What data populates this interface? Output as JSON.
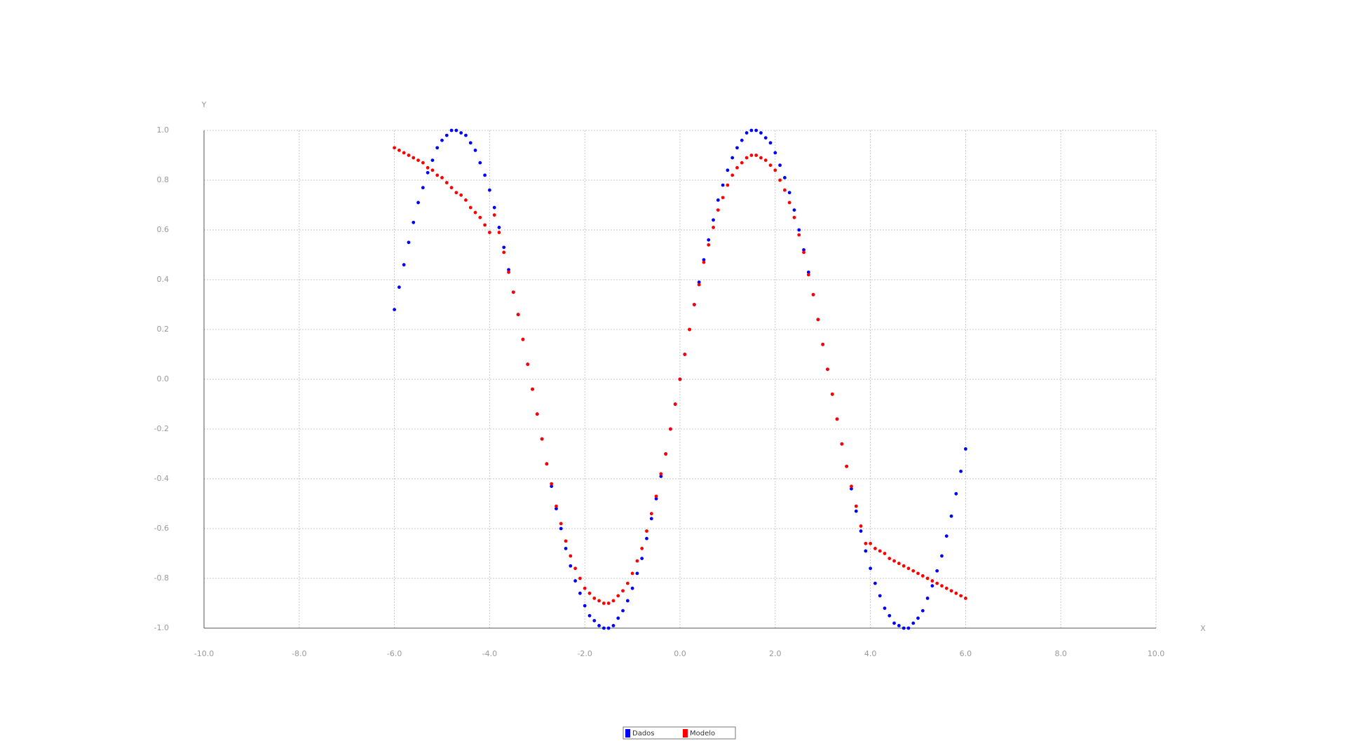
{
  "chart_data": {
    "type": "scatter",
    "x_label": "X",
    "y_label": "Y",
    "xlim": [
      -10,
      10
    ],
    "ylim": [
      -1,
      1
    ],
    "xticks": [
      {
        "value": -10,
        "label": "-10.0"
      },
      {
        "value": -8,
        "label": "-8.0"
      },
      {
        "value": -6,
        "label": "-6.0"
      },
      {
        "value": -4,
        "label": "-4.0"
      },
      {
        "value": -2,
        "label": "-2.0"
      },
      {
        "value": 0,
        "label": "0.0"
      },
      {
        "value": 2,
        "label": "2.0"
      },
      {
        "value": 4,
        "label": "4.0"
      },
      {
        "value": 6,
        "label": "6.0"
      },
      {
        "value": 8,
        "label": "8.0"
      },
      {
        "value": 10,
        "label": "10.0"
      }
    ],
    "yticks": [
      {
        "value": -1,
        "label": "-1.0"
      },
      {
        "value": -0.8,
        "label": "-0.8"
      },
      {
        "value": -0.6,
        "label": "-0.6"
      },
      {
        "value": -0.4,
        "label": "-0.4"
      },
      {
        "value": -0.2,
        "label": "-0.2"
      },
      {
        "value": 0,
        "label": "0.0"
      },
      {
        "value": 0.2,
        "label": "0.2"
      },
      {
        "value": 0.4,
        "label": "0.4"
      },
      {
        "value": 0.6,
        "label": "0.6"
      },
      {
        "value": 0.8,
        "label": "0.8"
      },
      {
        "value": 1,
        "label": "1.0"
      }
    ],
    "grid": true,
    "legend": "bottom",
    "x": [
      -6.0,
      -5.9,
      -5.8,
      -5.7,
      -5.6,
      -5.5,
      -5.4,
      -5.3,
      -5.2,
      -5.1,
      -5.0,
      -4.9,
      -4.8,
      -4.7,
      -4.6,
      -4.5,
      -4.4,
      -4.3,
      -4.2,
      -4.1,
      -4.0,
      -3.9,
      -3.8,
      -3.7,
      -3.6,
      -3.5,
      -3.4,
      -3.3,
      -3.2,
      -3.1,
      -3.0,
      -2.9,
      -2.8,
      -2.7,
      -2.6,
      -2.5,
      -2.4,
      -2.3,
      -2.2,
      -2.1,
      -2.0,
      -1.9,
      -1.8,
      -1.7,
      -1.6,
      -1.5,
      -1.4,
      -1.3,
      -1.2,
      -1.1,
      -1.0,
      -0.9,
      -0.8,
      -0.7,
      -0.6,
      -0.5,
      -0.4,
      -0.3,
      -0.2,
      -0.1,
      0.0,
      0.1,
      0.2,
      0.3,
      0.4,
      0.5,
      0.6,
      0.7,
      0.8,
      0.9,
      1.0,
      1.1,
      1.2,
      1.3,
      1.4,
      1.5,
      1.6,
      1.7,
      1.8,
      1.9,
      2.0,
      2.1,
      2.2,
      2.3,
      2.4,
      2.5,
      2.6,
      2.7,
      2.8,
      2.9,
      3.0,
      3.1,
      3.2,
      3.3,
      3.4,
      3.5,
      3.6,
      3.7,
      3.8,
      3.9,
      4.0,
      4.1,
      4.2,
      4.3,
      4.4,
      4.5,
      4.6,
      4.7,
      4.8,
      4.9,
      5.0,
      5.1,
      5.2,
      5.3,
      5.4,
      5.5,
      5.6,
      5.7,
      5.8,
      5.9,
      6.0
    ],
    "series": [
      {
        "name": "Dados",
        "color": "#0000ff",
        "values": [
          0.28,
          0.37,
          0.46,
          0.55,
          0.63,
          0.71,
          0.77,
          0.83,
          0.88,
          0.93,
          0.96,
          0.98,
          1.0,
          1.0,
          0.99,
          0.98,
          0.95,
          0.92,
          0.87,
          0.82,
          0.76,
          0.69,
          0.61,
          0.53,
          0.44,
          0.35,
          0.26,
          0.16,
          0.06,
          -0.04,
          -0.14,
          -0.24,
          -0.34,
          -0.43,
          -0.52,
          -0.6,
          -0.68,
          -0.75,
          -0.81,
          -0.86,
          -0.91,
          -0.95,
          -0.97,
          -0.99,
          -1.0,
          -1.0,
          -0.99,
          -0.96,
          -0.93,
          -0.89,
          -0.84,
          -0.78,
          -0.72,
          -0.64,
          -0.56,
          -0.48,
          -0.39,
          -0.3,
          -0.2,
          -0.1,
          0,
          0.1,
          0.2,
          0.3,
          0.39,
          0.48,
          0.56,
          0.64,
          0.72,
          0.78,
          0.84,
          0.89,
          0.93,
          0.96,
          0.99,
          1.0,
          1.0,
          0.99,
          0.97,
          0.95,
          0.91,
          0.86,
          0.81,
          0.75,
          0.68,
          0.6,
          0.52,
          0.43,
          0.34,
          0.24,
          0.14,
          0.04,
          -0.06,
          -0.16,
          -0.26,
          -0.35,
          -0.44,
          -0.53,
          -0.61,
          -0.69,
          -0.76,
          -0.82,
          -0.87,
          -0.92,
          -0.95,
          -0.98,
          -0.99,
          -1.0,
          -1.0,
          -0.98,
          -0.96,
          -0.93,
          -0.88,
          -0.83,
          -0.77,
          -0.71,
          -0.63,
          -0.55,
          -0.46,
          -0.37,
          -0.28
        ]
      },
      {
        "name": "Modelo",
        "color": "#ff0000",
        "values": [
          0.93,
          0.92,
          0.91,
          0.9,
          0.89,
          0.88,
          0.87,
          0.85,
          0.84,
          0.82,
          0.81,
          0.79,
          0.77,
          0.75,
          0.74,
          0.72,
          0.69,
          0.67,
          0.65,
          0.62,
          0.59,
          0.66,
          0.59,
          0.51,
          0.43,
          0.35,
          0.26,
          0.16,
          0.06,
          -0.04,
          -0.14,
          -0.24,
          -0.34,
          -0.42,
          -0.51,
          -0.58,
          -0.65,
          -0.71,
          -0.76,
          -0.8,
          -0.84,
          -0.86,
          -0.88,
          -0.89,
          -0.9,
          -0.9,
          -0.89,
          -0.87,
          -0.85,
          -0.82,
          -0.78,
          -0.73,
          -0.68,
          -0.61,
          -0.54,
          -0.47,
          -0.38,
          -0.3,
          -0.2,
          -0.1,
          0,
          0.1,
          0.2,
          0.3,
          0.38,
          0.47,
          0.54,
          0.61,
          0.68,
          0.73,
          0.78,
          0.82,
          0.85,
          0.87,
          0.89,
          0.9,
          0.9,
          0.89,
          0.88,
          0.86,
          0.84,
          0.8,
          0.76,
          0.71,
          0.65,
          0.58,
          0.51,
          0.42,
          0.34,
          0.24,
          0.14,
          0.04,
          -0.06,
          -0.16,
          -0.26,
          -0.35,
          -0.43,
          -0.51,
          -0.59,
          -0.66,
          -0.66,
          -0.68,
          -0.69,
          -0.7,
          -0.72,
          -0.73,
          -0.74,
          -0.75,
          -0.76,
          -0.77,
          -0.78,
          -0.79,
          -0.8,
          -0.81,
          -0.82,
          -0.83,
          -0.84,
          -0.85,
          -0.86,
          -0.87,
          -0.88
        ]
      }
    ]
  }
}
